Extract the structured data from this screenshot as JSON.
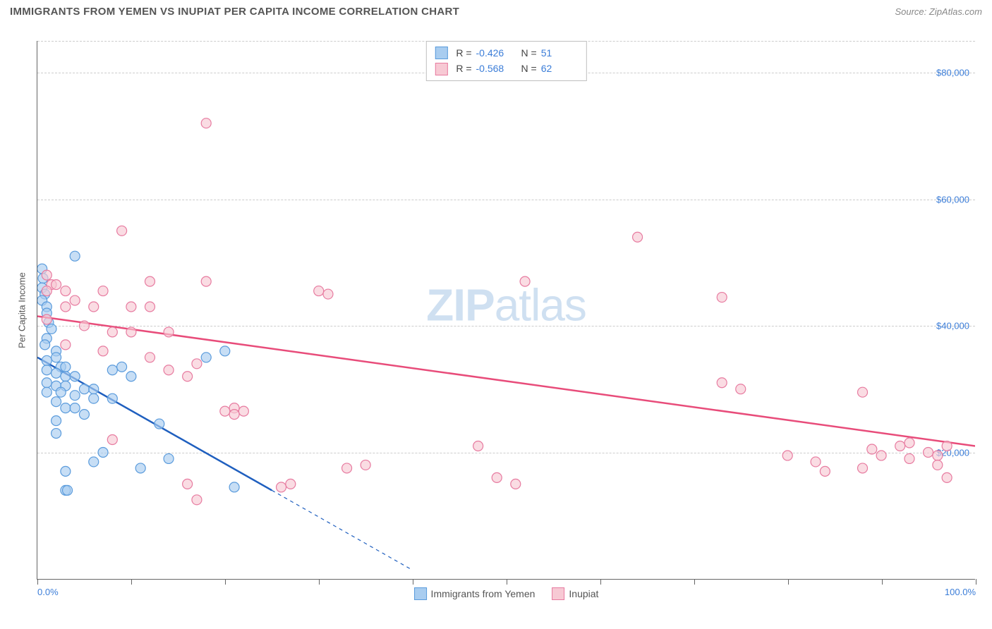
{
  "header": {
    "title": "IMMIGRANTS FROM YEMEN VS INUPIAT PER CAPITA INCOME CORRELATION CHART",
    "source_prefix": "Source: ",
    "source_name": "ZipAtlas.com"
  },
  "watermark": {
    "bold": "ZIP",
    "light": "atlas"
  },
  "chart": {
    "type": "scatter-with-regression",
    "y_label": "Per Capita Income",
    "x_min": 0,
    "x_max": 100,
    "y_min": 0,
    "y_max": 85000,
    "x_ticks": [
      0,
      10,
      20,
      30,
      40,
      50,
      60,
      70,
      80,
      90,
      100
    ],
    "x_tick_labels": {
      "0": "0.0%",
      "100": "100.0%"
    },
    "y_gridlines": [
      20000,
      40000,
      60000,
      80000
    ],
    "y_tick_labels": [
      "$20,000",
      "$40,000",
      "$60,000",
      "$80,000"
    ],
    "background_color": "#ffffff",
    "grid_color": "#cccccc",
    "axis_color": "#666666",
    "tick_label_color": "#3b7dd8",
    "marker_radius": 7,
    "marker_stroke_width": 1.2,
    "line_width": 2.5,
    "series": [
      {
        "name": "Immigrants from Yemen",
        "fill": "#a9cdf0",
        "stroke": "#5a9bdc",
        "line_color": "#1f5fbf",
        "R": "-0.426",
        "N": "51",
        "regression": {
          "x1": 0,
          "y1": 35000,
          "x2": 25,
          "y2": 14000,
          "dashed_extension_to_x": 40
        },
        "points": [
          [
            0.5,
            49000
          ],
          [
            0.6,
            47500
          ],
          [
            0.5,
            46000
          ],
          [
            0.8,
            45000
          ],
          [
            0.5,
            44000
          ],
          [
            4,
            51000
          ],
          [
            1,
            43000
          ],
          [
            1,
            42000
          ],
          [
            1.2,
            40500
          ],
          [
            1.5,
            39500
          ],
          [
            1,
            38000
          ],
          [
            0.8,
            37000
          ],
          [
            2,
            36000
          ],
          [
            2,
            35000
          ],
          [
            1,
            34500
          ],
          [
            2.5,
            33500
          ],
          [
            3,
            33500
          ],
          [
            1,
            33000
          ],
          [
            2,
            32500
          ],
          [
            3,
            32000
          ],
          [
            4,
            32000
          ],
          [
            9,
            33500
          ],
          [
            8,
            33000
          ],
          [
            10,
            32000
          ],
          [
            1,
            31000
          ],
          [
            2,
            30500
          ],
          [
            3,
            30500
          ],
          [
            5,
            30000
          ],
          [
            6,
            30000
          ],
          [
            1,
            29500
          ],
          [
            2.5,
            29500
          ],
          [
            4,
            29000
          ],
          [
            5,
            26000
          ],
          [
            6,
            28500
          ],
          [
            8,
            28500
          ],
          [
            2,
            28000
          ],
          [
            3,
            27000
          ],
          [
            4,
            27000
          ],
          [
            2,
            25000
          ],
          [
            18,
            35000
          ],
          [
            20,
            36000
          ],
          [
            13,
            24500
          ],
          [
            3,
            17000
          ],
          [
            11,
            17500
          ],
          [
            21,
            14500
          ],
          [
            3,
            14000
          ],
          [
            3.2,
            14000
          ],
          [
            6,
            18500
          ],
          [
            14,
            19000
          ],
          [
            2,
            23000
          ],
          [
            7,
            20000
          ]
        ]
      },
      {
        "name": "Inupiat",
        "fill": "#f7c9d4",
        "stroke": "#e77ba0",
        "line_color": "#e84c7a",
        "R": "-0.568",
        "N": "62",
        "regression": {
          "x1": 0,
          "y1": 41500,
          "x2": 100,
          "y2": 21000
        },
        "points": [
          [
            18,
            72000
          ],
          [
            9,
            55000
          ],
          [
            1,
            48000
          ],
          [
            1.5,
            46500
          ],
          [
            2,
            46500
          ],
          [
            1,
            45500
          ],
          [
            3,
            45500
          ],
          [
            7,
            45500
          ],
          [
            12,
            47000
          ],
          [
            18,
            47000
          ],
          [
            64,
            54000
          ],
          [
            52,
            47000
          ],
          [
            4,
            44000
          ],
          [
            3,
            43000
          ],
          [
            6,
            43000
          ],
          [
            10,
            43000
          ],
          [
            12,
            43000
          ],
          [
            30,
            45500
          ],
          [
            31,
            45000
          ],
          [
            73,
            44500
          ],
          [
            1,
            41000
          ],
          [
            5,
            40000
          ],
          [
            8,
            39000
          ],
          [
            10,
            39000
          ],
          [
            14,
            39000
          ],
          [
            3,
            37000
          ],
          [
            7,
            36000
          ],
          [
            12,
            35000
          ],
          [
            17,
            34000
          ],
          [
            14,
            33000
          ],
          [
            16,
            32000
          ],
          [
            20,
            26500
          ],
          [
            21,
            27000
          ],
          [
            22,
            26500
          ],
          [
            8,
            22000
          ],
          [
            21,
            26000
          ],
          [
            16,
            15000
          ],
          [
            17,
            12500
          ],
          [
            26,
            14500
          ],
          [
            27,
            15000
          ],
          [
            33,
            17500
          ],
          [
            35,
            18000
          ],
          [
            47,
            21000
          ],
          [
            49,
            16000
          ],
          [
            51,
            15000
          ],
          [
            73,
            31000
          ],
          [
            75,
            30000
          ],
          [
            80,
            19500
          ],
          [
            83,
            18500
          ],
          [
            84,
            17000
          ],
          [
            88,
            29500
          ],
          [
            88,
            17500
          ],
          [
            89,
            20500
          ],
          [
            90,
            19500
          ],
          [
            92,
            21000
          ],
          [
            93,
            21500
          ],
          [
            93,
            19000
          ],
          [
            95,
            20000
          ],
          [
            96,
            19500
          ],
          [
            96,
            18000
          ],
          [
            97,
            21000
          ],
          [
            97,
            16000
          ]
        ]
      }
    ]
  }
}
